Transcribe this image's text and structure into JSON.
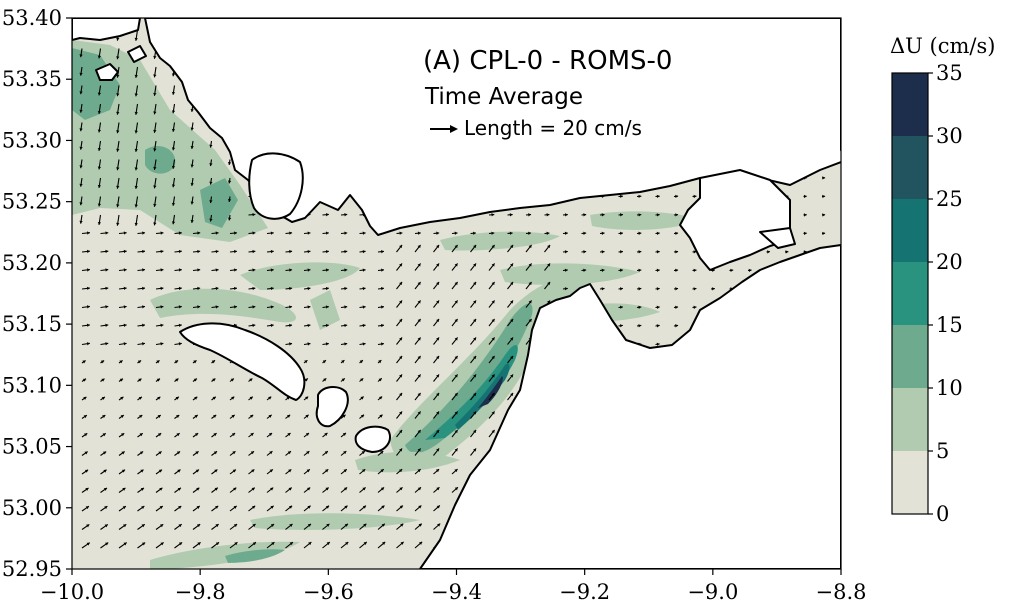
{
  "chart_data": {
    "type": "heatmap",
    "title": "(A) CPL-0 - ROMS-0",
    "subtitle": "Time Average",
    "quiver_key": {
      "label": "Length = 20 cm/s",
      "value": 20,
      "units": "cm/s"
    },
    "xlim": [
      -10.0,
      -8.8
    ],
    "ylim": [
      52.95,
      53.4
    ],
    "x_ticks": [
      -10.0,
      -9.8,
      -9.6,
      -9.4,
      -9.2,
      -9.0,
      -8.8
    ],
    "x_tick_labels": [
      "−10.0",
      "−9.8",
      "−9.6",
      "−9.4",
      "−9.2",
      "−9.0",
      "−8.8"
    ],
    "y_ticks": [
      52.95,
      53.0,
      53.05,
      53.1,
      53.15,
      53.2,
      53.25,
      53.3,
      53.35,
      53.4
    ],
    "y_tick_labels": [
      "52.95",
      "53.00",
      "53.05",
      "53.10",
      "53.15",
      "53.20",
      "53.25",
      "53.30",
      "53.35",
      "53.40"
    ],
    "colorbar": {
      "title": "ΔU (cm/s)",
      "levels": [
        0,
        5,
        10,
        15,
        20,
        25,
        30,
        35
      ],
      "tick_labels": [
        "0",
        "5",
        "10",
        "15",
        "20",
        "25",
        "30",
        "35"
      ],
      "colors": [
        "#e2e2d6",
        "#b0cbaf",
        "#6eab8e",
        "#2a9380",
        "#157472",
        "#225460",
        "#1d2e4d"
      ]
    },
    "ocean_color": "#e2e2d6",
    "land_color": "#ffffff",
    "coast_color": "#000000",
    "vector_color": "#000000",
    "grid": false
  }
}
